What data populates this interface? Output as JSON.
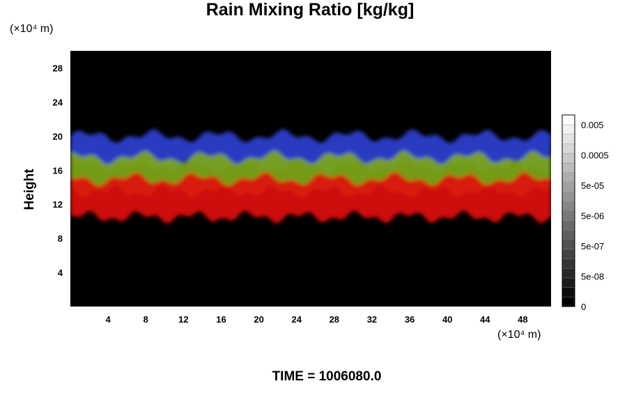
{
  "chart_data": {
    "type": "heatmap",
    "title": "Rain Mixing Ratio [kg/kg]",
    "ylabel": "Height",
    "xlabel": "",
    "x_unit": "(×10⁴ m)",
    "y_unit": "(×10⁴ m)",
    "xlim": [
      0,
      51
    ],
    "ylim": [
      0,
      30
    ],
    "x_ticks": [
      4,
      8,
      12,
      16,
      20,
      24,
      28,
      32,
      36,
      40,
      44,
      48
    ],
    "y_ticks": [
      4,
      8,
      12,
      16,
      20,
      24,
      28
    ],
    "colorbar": {
      "labels": [
        "0.005",
        "0.0005",
        "5e-05",
        "5e-06",
        "5e-07",
        "5e-08",
        "0"
      ],
      "levels": 20,
      "colors": [
        "#000000",
        "#ffffff"
      ]
    },
    "layers": [
      {
        "color": "#2c3fd0",
        "y_range": [
          16.5,
          20
        ]
      },
      {
        "color": "#7ea818",
        "y_range": [
          13.5,
          17.5
        ]
      },
      {
        "color": "#e01010",
        "y_range": [
          10.5,
          15
        ]
      }
    ],
    "background": "#000000"
  },
  "footer": {
    "time_label": "TIME = 1006080.0"
  }
}
